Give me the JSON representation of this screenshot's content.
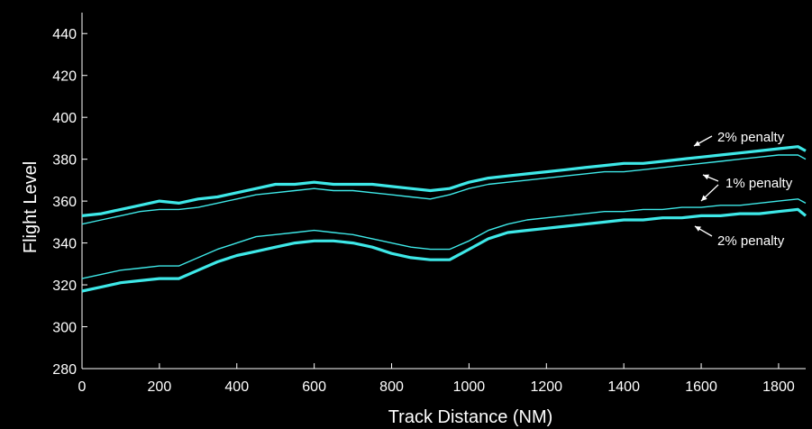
{
  "chart_data": {
    "type": "line",
    "title": "",
    "xlabel": "Track Distance (NM)",
    "ylabel": "Flight Level",
    "xlim": [
      0,
      1870
    ],
    "ylim": [
      280,
      450
    ],
    "xticks": [
      0,
      200,
      400,
      600,
      800,
      1000,
      1200,
      1400,
      1600,
      1800
    ],
    "yticks": [
      280,
      300,
      320,
      340,
      360,
      380,
      400,
      420,
      440
    ],
    "grid": false,
    "legend": "none",
    "background": "#000000",
    "line_color": "#3EE8E8",
    "series": [
      {
        "style": "thick",
        "x": [
          0,
          50,
          100,
          150,
          200,
          250,
          300,
          350,
          400,
          450,
          500,
          550,
          600,
          650,
          700,
          750,
          800,
          850,
          900,
          950,
          1000,
          1050,
          1100,
          1150,
          1200,
          1250,
          1300,
          1350,
          1400,
          1450,
          1500,
          1550,
          1600,
          1650,
          1700,
          1750,
          1800,
          1850,
          1870
        ],
        "y": [
          353,
          354,
          356,
          358,
          360,
          359,
          361,
          362,
          364,
          366,
          368,
          368,
          369,
          368,
          368,
          368,
          367,
          366,
          365,
          366,
          369,
          371,
          372,
          373,
          374,
          375,
          376,
          377,
          378,
          378,
          379,
          380,
          381,
          382,
          383,
          384,
          385,
          386,
          384
        ]
      },
      {
        "style": "thin",
        "x": [
          0,
          50,
          100,
          150,
          200,
          250,
          300,
          350,
          400,
          450,
          500,
          550,
          600,
          650,
          700,
          750,
          800,
          850,
          900,
          950,
          1000,
          1050,
          1100,
          1150,
          1200,
          1250,
          1300,
          1350,
          1400,
          1450,
          1500,
          1550,
          1600,
          1650,
          1700,
          1750,
          1800,
          1850,
          1870
        ],
        "y": [
          349,
          351,
          353,
          355,
          356,
          356,
          357,
          359,
          361,
          363,
          364,
          365,
          366,
          365,
          365,
          364,
          363,
          362,
          361,
          363,
          366,
          368,
          369,
          370,
          371,
          372,
          373,
          374,
          374,
          375,
          376,
          377,
          378,
          379,
          380,
          381,
          382,
          382,
          380
        ]
      },
      {
        "style": "thin",
        "x": [
          0,
          50,
          100,
          150,
          200,
          250,
          300,
          350,
          400,
          450,
          500,
          550,
          600,
          650,
          700,
          750,
          800,
          850,
          900,
          950,
          1000,
          1050,
          1100,
          1150,
          1200,
          1250,
          1300,
          1350,
          1400,
          1450,
          1500,
          1550,
          1600,
          1650,
          1700,
          1750,
          1800,
          1850,
          1870
        ],
        "y": [
          323,
          325,
          327,
          328,
          329,
          329,
          333,
          337,
          340,
          343,
          344,
          345,
          346,
          345,
          344,
          342,
          340,
          338,
          337,
          337,
          341,
          346,
          349,
          351,
          352,
          353,
          354,
          355,
          355,
          356,
          356,
          357,
          357,
          358,
          358,
          359,
          360,
          361,
          359
        ]
      },
      {
        "style": "thick",
        "x": [
          0,
          50,
          100,
          150,
          200,
          250,
          300,
          350,
          400,
          450,
          500,
          550,
          600,
          650,
          700,
          750,
          800,
          850,
          900,
          950,
          1000,
          1050,
          1100,
          1150,
          1200,
          1250,
          1300,
          1350,
          1400,
          1450,
          1500,
          1550,
          1600,
          1650,
          1700,
          1750,
          1800,
          1850,
          1870
        ],
        "y": [
          317,
          319,
          321,
          322,
          323,
          323,
          327,
          331,
          334,
          336,
          338,
          340,
          341,
          341,
          340,
          338,
          335,
          333,
          332,
          332,
          337,
          342,
          345,
          346,
          347,
          348,
          349,
          350,
          351,
          351,
          352,
          352,
          353,
          353,
          354,
          354,
          355,
          356,
          353
        ]
      }
    ],
    "annotations": [
      {
        "text": "2% penalty"
      },
      {
        "text": "1% penalty"
      },
      {
        "text": "2% penalty"
      }
    ]
  }
}
